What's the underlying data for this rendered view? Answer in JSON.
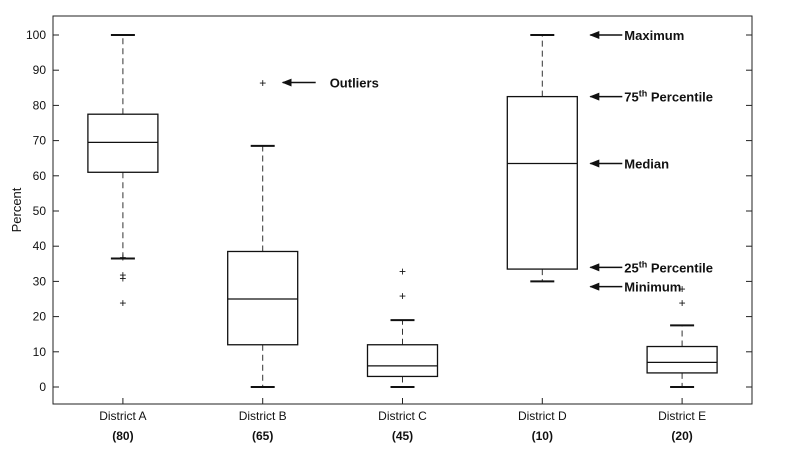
{
  "chart_data": {
    "type": "box",
    "title": "",
    "xlabel": "",
    "ylabel": "Percent",
    "ylim": [
      -5,
      105
    ],
    "yticks": [
      0,
      10,
      20,
      30,
      40,
      50,
      60,
      70,
      80,
      90,
      100
    ],
    "grid": false,
    "categories": [
      {
        "name": "District A",
        "n_label": "(80)"
      },
      {
        "name": "District B",
        "n_label": "(65)"
      },
      {
        "name": "District C",
        "n_label": "(45)"
      },
      {
        "name": "District D",
        "n_label": "(10)"
      },
      {
        "name": "District E",
        "n_label": "(20)"
      }
    ],
    "boxes": [
      {
        "min": 36.5,
        "q1": 61,
        "median": 69.5,
        "q3": 77.5,
        "max": 100,
        "outliers": [
          24,
          31,
          32,
          37
        ]
      },
      {
        "min": 0,
        "q1": 12,
        "median": 25,
        "q3": 38.5,
        "max": 68.5,
        "outliers": [
          86.5
        ]
      },
      {
        "min": 0,
        "q1": 3,
        "median": 6,
        "q3": 12,
        "max": 19,
        "outliers": [
          26,
          33
        ]
      },
      {
        "min": 30,
        "q1": 33.5,
        "median": 63.5,
        "q3": 82.5,
        "max": 100,
        "outliers": []
      },
      {
        "min": 0,
        "q1": 4,
        "median": 7,
        "q3": 11.5,
        "max": 17.5,
        "outliers": [
          24,
          28
        ]
      }
    ],
    "annotations": [
      {
        "text": "Outliers",
        "sup": "",
        "rest": "",
        "target": 86.5
      },
      {
        "text": "Maximum",
        "sup": "",
        "rest": "",
        "target": 100
      },
      {
        "text": "75",
        "sup": "th",
        "rest": " Percentile",
        "target": 82.5
      },
      {
        "text": "Median",
        "sup": "",
        "rest": "",
        "target": 63.5
      },
      {
        "text": "25",
        "sup": "th",
        "rest": " Percentile",
        "target": 34
      },
      {
        "text": "Minimum",
        "sup": "",
        "rest": "",
        "target": 28.5
      }
    ]
  }
}
